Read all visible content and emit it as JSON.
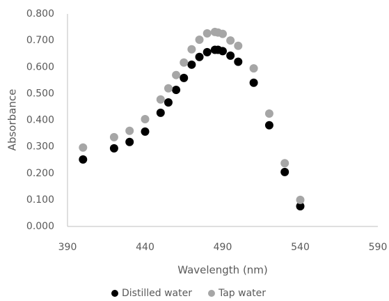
{
  "chart_data": {
    "type": "scatter",
    "x_label": "Wavelength (nm)",
    "y_label": "Absorbance",
    "series": [
      {
        "name": "Distilled water",
        "color": "#000000",
        "x": [
          400,
          420,
          430,
          440,
          450,
          455,
          460,
          465,
          470,
          475,
          480,
          485,
          487,
          490,
          495,
          500,
          510,
          520,
          530,
          540
        ],
        "values": [
          0.252,
          0.294,
          0.318,
          0.357,
          0.428,
          0.467,
          0.514,
          0.559,
          0.609,
          0.638,
          0.656,
          0.665,
          0.665,
          0.66,
          0.643,
          0.62,
          0.541,
          0.381,
          0.205,
          0.076
        ]
      },
      {
        "name": "Tap water",
        "color": "#a6a6a6",
        "x": [
          400,
          420,
          430,
          440,
          450,
          455,
          460,
          465,
          470,
          475,
          480,
          485,
          487,
          490,
          495,
          500,
          510,
          520,
          530,
          540
        ],
        "values": [
          0.297,
          0.336,
          0.36,
          0.404,
          0.478,
          0.52,
          0.57,
          0.617,
          0.667,
          0.703,
          0.727,
          0.732,
          0.73,
          0.725,
          0.7,
          0.68,
          0.595,
          0.425,
          0.238,
          0.1
        ]
      }
    ],
    "xlim": [
      390,
      590
    ],
    "xticks": [
      390,
      440,
      490,
      540,
      590
    ],
    "ylim": [
      0,
      0.8
    ],
    "yticks": [
      {
        "value": 0,
        "label": "0.000"
      },
      {
        "value": 0.1,
        "label": "0.100"
      },
      {
        "value": 0.2,
        "label": "0.200"
      },
      {
        "value": 0.3,
        "label": "0.300"
      },
      {
        "value": 0.4,
        "label": "0.400"
      },
      {
        "value": 0.5,
        "label": "0.500"
      },
      {
        "value": 0.6,
        "label": "0.600"
      },
      {
        "value": 0.7,
        "label": "0.700"
      },
      {
        "value": 0.8,
        "label": "0.800"
      }
    ],
    "grid": false,
    "legend": "bottom"
  }
}
